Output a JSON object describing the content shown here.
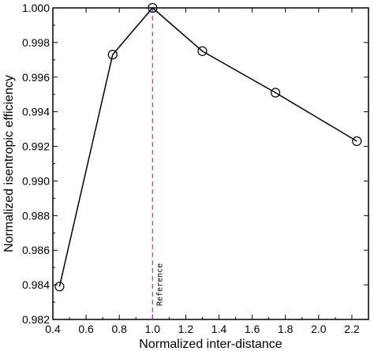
{
  "chart_data": {
    "type": "line",
    "title": "",
    "xlabel": "Normalized inter-distance",
    "ylabel": "Normalized isentropic efficiency",
    "xlim": [
      0.4,
      2.3
    ],
    "ylim": [
      0.982,
      1.0
    ],
    "xticks": [
      "0.4",
      "0.6",
      "0.8",
      "1.0",
      "1.2",
      "1.4",
      "1.6",
      "1.8",
      "2.0",
      "2.2"
    ],
    "xtick_values": [
      0.4,
      0.6,
      0.8,
      1.0,
      1.2,
      1.4,
      1.6,
      1.8,
      2.0,
      2.2
    ],
    "yticks": [
      "0.982",
      "0.984",
      "0.986",
      "0.988",
      "0.990",
      "0.992",
      "0.994",
      "0.996",
      "0.998",
      "1.000"
    ],
    "ytick_values": [
      0.982,
      0.984,
      0.986,
      0.988,
      0.99,
      0.992,
      0.994,
      0.996,
      0.998,
      1.0
    ],
    "grid": false,
    "series": [
      {
        "marker": "open-circle",
        "color": "#000000",
        "x": [
          0.44,
          0.76,
          1.0,
          1.3,
          1.74,
          2.23
        ],
        "y": [
          0.9839,
          0.9973,
          1.0,
          0.9975,
          0.9951,
          0.9923
        ]
      }
    ],
    "annotations": [
      {
        "type": "vline",
        "x": 1.0,
        "color": "#cc33cc",
        "style": "dashed",
        "label": "Reference"
      }
    ]
  }
}
